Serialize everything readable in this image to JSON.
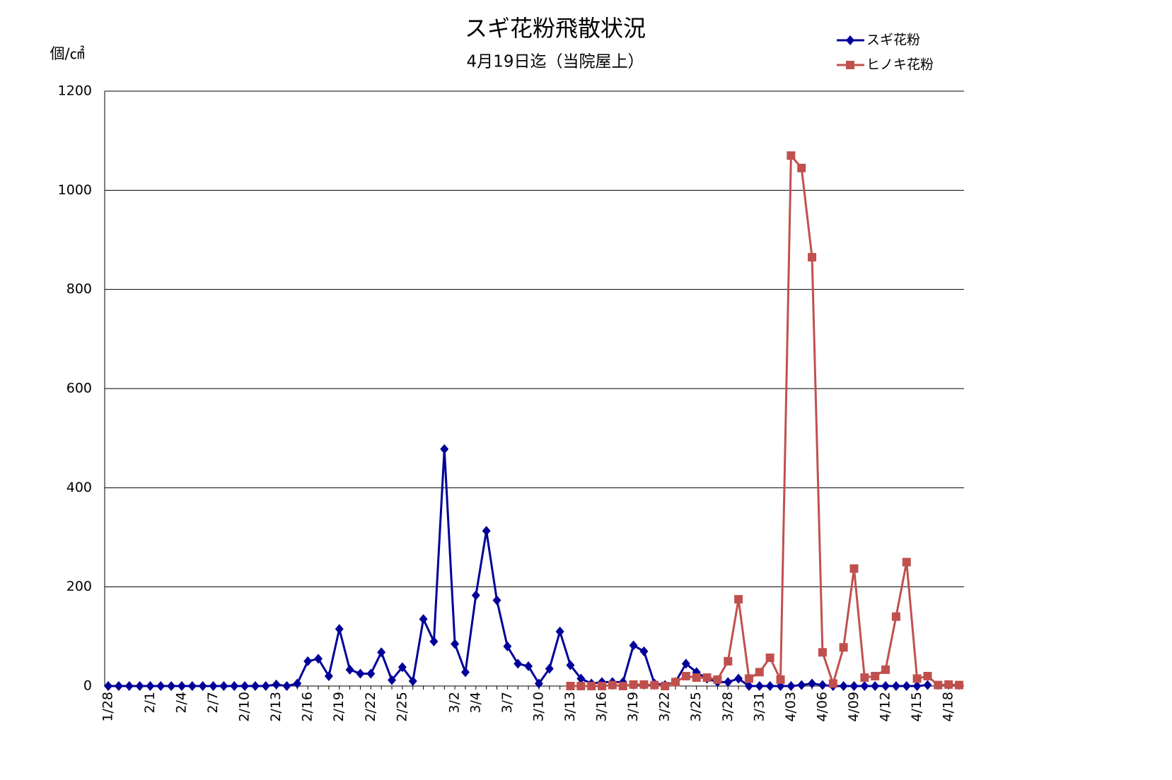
{
  "chart_data": {
    "type": "line",
    "title": "スギ花粉飛散状況",
    "subtitle": "4月19日迄（当院屋上）",
    "y_label": "個/㎠",
    "categories": [
      "1/28",
      null,
      null,
      null,
      "2/1",
      null,
      null,
      "2/4",
      null,
      null,
      "2/7",
      null,
      null,
      "2/10",
      null,
      null,
      "2/13",
      null,
      null,
      "2/16",
      null,
      null,
      "2/19",
      null,
      null,
      "2/22",
      null,
      null,
      "2/25",
      null,
      null,
      null,
      null,
      "3/2",
      null,
      "3/4",
      null,
      null,
      "3/7",
      null,
      null,
      "3/10",
      null,
      null,
      "3/13",
      null,
      null,
      "3/16",
      null,
      null,
      "3/19",
      null,
      null,
      "3/22",
      null,
      null,
      "3/25",
      null,
      null,
      "3/28",
      null,
      null,
      "3/31",
      null,
      null,
      "4/03",
      null,
      null,
      "4/06",
      null,
      null,
      "4/09",
      null,
      null,
      "4/12",
      null,
      null,
      "4/15",
      null,
      null,
      "4/18",
      null
    ],
    "series": [
      {
        "name": "スギ花粉",
        "color": "#000099",
        "marker": "diamond",
        "values": [
          0,
          0,
          0,
          0,
          0,
          0,
          0,
          0,
          0,
          0,
          0,
          0,
          0,
          0,
          0,
          0,
          3,
          0,
          5,
          50,
          55,
          20,
          115,
          33,
          25,
          25,
          68,
          12,
          38,
          10,
          135,
          90,
          478,
          85,
          28,
          183,
          313,
          173,
          80,
          45,
          40,
          5,
          35,
          110,
          42,
          15,
          5,
          8,
          8,
          8,
          82,
          70,
          5,
          2,
          8,
          45,
          28,
          15,
          8,
          8,
          15,
          0,
          0,
          0,
          0,
          0,
          2,
          5,
          2,
          0,
          0,
          0,
          0,
          0,
          0,
          0,
          0,
          0,
          2,
          null,
          null,
          null
        ]
      },
      {
        "name": "ヒノキ花粉",
        "color": "#c0504d",
        "marker": "square",
        "values": [
          null,
          null,
          null,
          null,
          null,
          null,
          null,
          null,
          null,
          null,
          null,
          null,
          null,
          null,
          null,
          null,
          null,
          null,
          null,
          null,
          null,
          null,
          null,
          null,
          null,
          null,
          null,
          null,
          null,
          null,
          null,
          null,
          null,
          null,
          null,
          null,
          null,
          null,
          null,
          null,
          null,
          null,
          null,
          null,
          0,
          0,
          0,
          0,
          2,
          0,
          3,
          3,
          2,
          0,
          8,
          20,
          17,
          17,
          13,
          50,
          175,
          15,
          28,
          57,
          13,
          1070,
          1045,
          865,
          68,
          5,
          78,
          237,
          17,
          20,
          33,
          140,
          250,
          15,
          20,
          2,
          3,
          2
        ]
      }
    ],
    "ylim": [
      0,
      1200
    ],
    "yticks": [
      0,
      200,
      400,
      600,
      800,
      1000,
      1200
    ],
    "grid": true
  }
}
